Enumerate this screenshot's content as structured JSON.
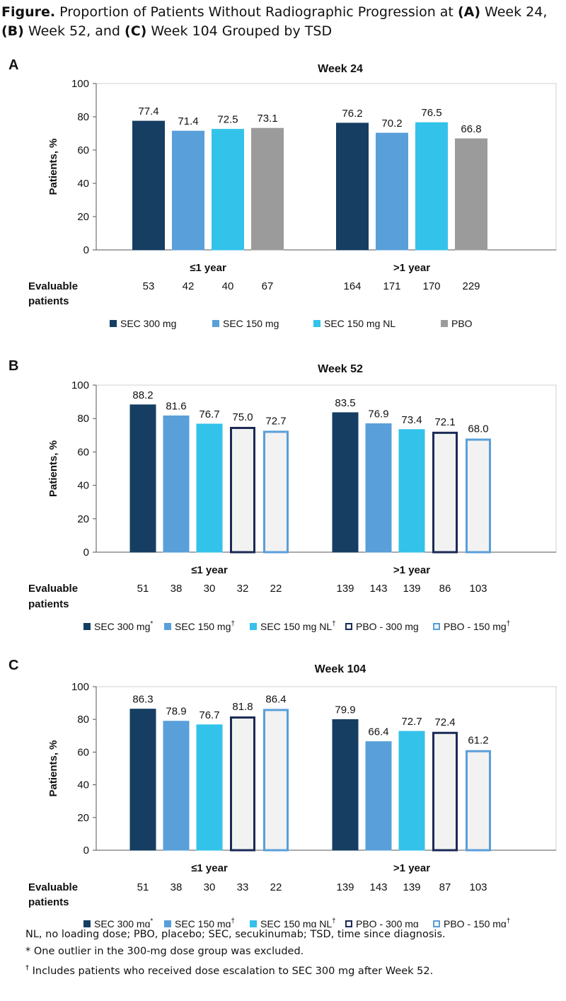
{
  "caption": {
    "lead": "Figure.",
    "t1": " Proportion of Patients Without Radiographic Progression at ",
    "a": "(A)",
    "t2": " Week 24, ",
    "b": "(B)",
    "t3": " Week 52, and ",
    "c": "(C)",
    "t4": " Week 104 Grouped by TSD"
  },
  "chart_data": [
    {
      "panel": "A",
      "type": "bar",
      "title": "Week 24",
      "ylabel": "Patients, %",
      "ylim": [
        0,
        100
      ],
      "yticks": [
        "0",
        "20",
        "40",
        "60",
        "80",
        "100"
      ],
      "categories": [
        "≤1 year",
        ">1 year"
      ],
      "evaluable_label": [
        "Evaluable",
        "patients"
      ],
      "series": [
        {
          "name": "SEC 300 mg",
          "sup": "",
          "values": [
            77.4,
            76.2
          ],
          "labels": [
            "77.4",
            "76.2"
          ],
          "n": [
            "53",
            "164"
          ],
          "fill": "#153e62",
          "stroke": "#153e62"
        },
        {
          "name": "SEC 150 mg",
          "sup": "",
          "values": [
            71.4,
            70.2
          ],
          "labels": [
            "71.4",
            "70.2"
          ],
          "n": [
            "42",
            "171"
          ],
          "fill": "#599fd9",
          "stroke": "#599fd9"
        },
        {
          "name": "SEC 150 mg NL",
          "sup": "",
          "values": [
            72.5,
            76.5
          ],
          "labels": [
            "72.5",
            "76.5"
          ],
          "n": [
            "40",
            "170"
          ],
          "fill": "#33c2ea",
          "stroke": "#33c2ea"
        },
        {
          "name": "PBO",
          "sup": "",
          "values": [
            73.1,
            66.8
          ],
          "labels": [
            "73.1",
            "66.8"
          ],
          "n": [
            "67",
            "229"
          ],
          "fill": "#9b9b9b",
          "stroke": "#9b9b9b"
        }
      ]
    },
    {
      "panel": "B",
      "type": "bar",
      "title": "Week 52",
      "ylabel": "Patients, %",
      "ylim": [
        0,
        100
      ],
      "yticks": [
        "0",
        "20",
        "40",
        "60",
        "80",
        "100"
      ],
      "categories": [
        "≤1 year",
        ">1 year"
      ],
      "evaluable_label": [
        "Evaluable",
        "patients"
      ],
      "series": [
        {
          "name": "SEC 300 mg",
          "sup": "*",
          "values": [
            88.2,
            83.5
          ],
          "labels": [
            "88.2",
            "83.5"
          ],
          "n": [
            "51",
            "139"
          ],
          "fill": "#153e62",
          "stroke": "#153e62"
        },
        {
          "name": "SEC 150 mg",
          "sup": "†",
          "values": [
            81.6,
            76.9
          ],
          "labels": [
            "81.6",
            "76.9"
          ],
          "n": [
            "38",
            "143"
          ],
          "fill": "#599fd9",
          "stroke": "#599fd9"
        },
        {
          "name": "SEC 150 mg NL",
          "sup": "†",
          "values": [
            76.7,
            73.4
          ],
          "labels": [
            "76.7",
            "73.4"
          ],
          "n": [
            "30",
            "139"
          ],
          "fill": "#33c2ea",
          "stroke": "#33c2ea"
        },
        {
          "name": "PBO - 300 mg",
          "sup": "",
          "values": [
            75.0,
            72.1
          ],
          "labels": [
            "75.0",
            "72.1"
          ],
          "n": [
            "32",
            "86"
          ],
          "fill": "#f2f2f2",
          "stroke": "#1b2a55"
        },
        {
          "name": "PBO - 150 mg",
          "sup": "†",
          "values": [
            72.7,
            68.0
          ],
          "labels": [
            "72.7",
            "68.0"
          ],
          "n": [
            "22",
            "103"
          ],
          "fill": "#f2f2f2",
          "stroke": "#599fd9"
        }
      ]
    },
    {
      "panel": "C",
      "type": "bar",
      "title": "Week 104",
      "ylabel": "Patients, %",
      "ylim": [
        0,
        100
      ],
      "yticks": [
        "0",
        "20",
        "40",
        "60",
        "80",
        "100"
      ],
      "categories": [
        "≤1 year",
        ">1 year"
      ],
      "evaluable_label": [
        "Evaluable",
        "patients"
      ],
      "series": [
        {
          "name": "SEC 300 mg",
          "sup": "*",
          "values": [
            86.3,
            79.9
          ],
          "labels": [
            "86.3",
            "79.9"
          ],
          "n": [
            "51",
            "139"
          ],
          "fill": "#153e62",
          "stroke": "#153e62"
        },
        {
          "name": "SEC 150 mg",
          "sup": "†",
          "values": [
            78.9,
            66.4
          ],
          "labels": [
            "78.9",
            "66.4"
          ],
          "n": [
            "38",
            "143"
          ],
          "fill": "#599fd9",
          "stroke": "#599fd9"
        },
        {
          "name": "SEC 150 mg NL",
          "sup": "†",
          "values": [
            76.7,
            72.7
          ],
          "labels": [
            "76.7",
            "72.7"
          ],
          "n": [
            "30",
            "139"
          ],
          "fill": "#33c2ea",
          "stroke": "#33c2ea"
        },
        {
          "name": "PBO - 300 mg",
          "sup": "",
          "values": [
            81.8,
            72.4
          ],
          "labels": [
            "81.8",
            "72.4"
          ],
          "n": [
            "33",
            "87"
          ],
          "fill": "#f2f2f2",
          "stroke": "#1b2a55"
        },
        {
          "name": "PBO - 150 mg",
          "sup": "†",
          "values": [
            86.4,
            61.2
          ],
          "labels": [
            "86.4",
            "61.2"
          ],
          "n": [
            "22",
            "103"
          ],
          "fill": "#f2f2f2",
          "stroke": "#599fd9"
        }
      ]
    }
  ],
  "footnotes": {
    "abbrev": "NL, no loading dose; PBO, placebo; SEC, secukinumab; TSD, time since diagnosis.",
    "star_mark": "*",
    "star_text": " One outlier in the 300-mg dose group was excluded.",
    "dagger_mark": "†",
    "dagger_text": " Includes patients who received dose escalation to SEC 300 mg after Week 52."
  }
}
